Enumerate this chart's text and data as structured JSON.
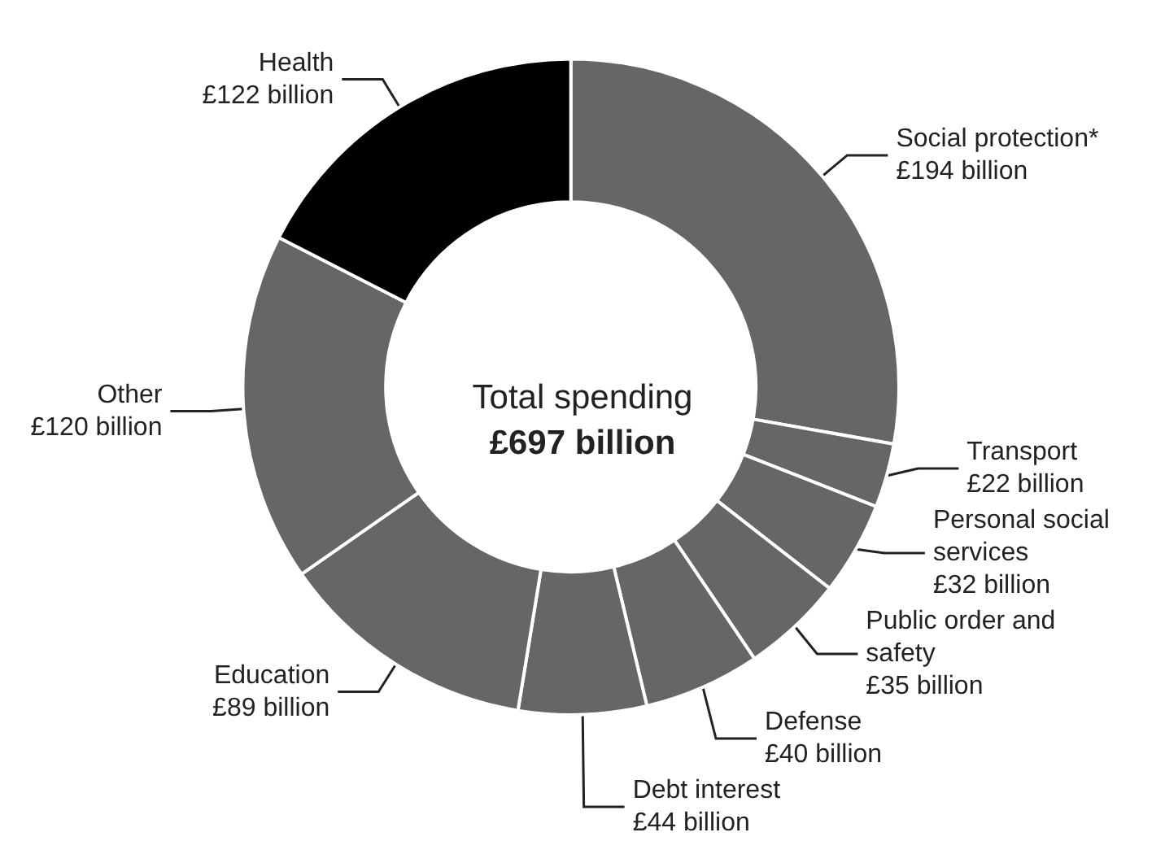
{
  "chart_data": {
    "type": "donut",
    "categories": [
      "Social protection*",
      "Transport",
      "Personal social services",
      "Public order and safety",
      "Defense",
      "Debt interest",
      "Education",
      "Other",
      "Health"
    ],
    "values": [
      194,
      22,
      32,
      35,
      40,
      44,
      89,
      120,
      122
    ],
    "value_labels": [
      "£194 billion",
      "£22 billion",
      "£32 billion",
      "£35 billion",
      "£40 billion",
      "£44 billion",
      "£89 billion",
      "£120 billion",
      "£122 billion"
    ],
    "colors": [
      "#666666",
      "#666666",
      "#666666",
      "#666666",
      "#666666",
      "#666666",
      "#666666",
      "#666666",
      "#000000"
    ],
    "annotations": [
      "Total spending",
      "£697 billion"
    ],
    "legend": false
  }
}
